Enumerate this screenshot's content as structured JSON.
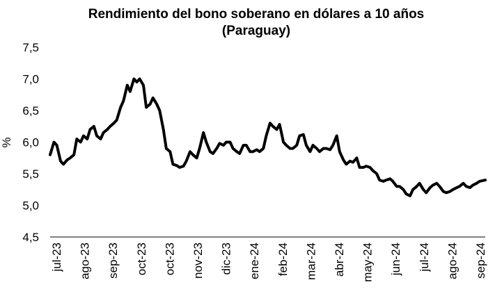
{
  "chart_data": {
    "type": "line",
    "title": "Rendimiento del bono soberano en dólares a 10 años",
    "subtitle": "(Paraguay)",
    "ylabel": "%",
    "xlabel": "",
    "ylim": [
      4.5,
      7.5
    ],
    "yticks": [
      "4,5",
      "5,0",
      "5,5",
      "6,0",
      "6,5",
      "7,0",
      "7,5"
    ],
    "categories": [
      "jul-23",
      "ago-23",
      "sep-23",
      "oct-23",
      "oct-23",
      "nov-23",
      "dic-23",
      "ene-24",
      "feb-24",
      "mar-24",
      "abr-24",
      "may-24",
      "jun-24",
      "jul-24",
      "ago-24",
      "sep-24"
    ],
    "grid": false,
    "legend": "none",
    "line_color": "#000000",
    "series": [
      {
        "x": [
          "2023-07-01",
          "2023-07-05",
          "2023-07-08",
          "2023-07-12",
          "2023-07-15",
          "2023-07-19",
          "2023-07-22",
          "2023-07-26",
          "2023-07-29",
          "2023-08-02",
          "2023-08-05",
          "2023-08-09",
          "2023-08-12",
          "2023-08-16",
          "2023-08-19",
          "2023-08-23",
          "2023-08-26",
          "2023-08-30",
          "2023-09-02",
          "2023-09-06",
          "2023-09-09",
          "2023-09-13",
          "2023-09-16",
          "2023-09-20",
          "2023-09-23",
          "2023-09-27",
          "2023-09-30",
          "2023-10-03",
          "2023-10-07",
          "2023-10-10",
          "2023-10-14",
          "2023-10-17",
          "2023-10-21",
          "2023-10-24",
          "2023-10-28",
          "2023-10-31",
          "2023-11-04",
          "2023-11-07",
          "2023-11-11",
          "2023-11-14",
          "2023-11-18",
          "2023-11-21",
          "2023-11-25",
          "2023-11-28",
          "2023-12-02",
          "2023-12-05",
          "2023-12-09",
          "2023-12-12",
          "2023-12-16",
          "2023-12-19",
          "2023-12-23",
          "2023-12-26",
          "2023-12-30",
          "2024-01-02",
          "2024-01-06",
          "2024-01-09",
          "2024-01-13",
          "2024-01-16",
          "2024-01-20",
          "2024-01-23",
          "2024-01-27",
          "2024-01-30",
          "2024-02-03",
          "2024-02-06",
          "2024-02-10",
          "2024-02-13",
          "2024-02-17",
          "2024-02-20",
          "2024-02-24",
          "2024-02-27",
          "2024-03-02",
          "2024-03-05",
          "2024-03-09",
          "2024-03-12",
          "2024-03-16",
          "2024-03-19",
          "2024-03-23",
          "2024-03-26",
          "2024-03-30",
          "2024-04-02",
          "2024-04-06",
          "2024-04-09",
          "2024-04-13",
          "2024-04-16",
          "2024-04-20",
          "2024-04-23",
          "2024-04-27",
          "2024-04-30",
          "2024-05-04",
          "2024-05-07",
          "2024-05-11",
          "2024-05-14",
          "2024-05-18",
          "2024-05-21",
          "2024-05-25",
          "2024-05-28",
          "2024-06-01",
          "2024-06-04",
          "2024-06-08",
          "2024-06-11",
          "2024-06-15",
          "2024-06-18",
          "2024-06-22",
          "2024-06-25",
          "2024-06-29",
          "2024-07-02",
          "2024-07-06",
          "2024-07-09",
          "2024-07-13",
          "2024-07-16",
          "2024-07-20",
          "2024-07-23",
          "2024-07-27",
          "2024-07-30",
          "2024-08-03",
          "2024-08-06",
          "2024-08-10",
          "2024-08-13",
          "2024-08-17",
          "2024-08-20",
          "2024-08-24",
          "2024-08-27",
          "2024-08-31",
          "2024-09-03",
          "2024-09-07",
          "2024-09-10",
          "2024-09-14",
          "2024-09-17",
          "2024-09-21",
          "2024-09-24",
          "2024-09-30"
        ],
        "values": [
          5.8,
          6.0,
          5.95,
          5.7,
          5.65,
          5.72,
          5.75,
          5.8,
          6.05,
          6.0,
          6.1,
          6.05,
          6.2,
          6.25,
          6.1,
          6.05,
          6.15,
          6.2,
          6.25,
          6.3,
          6.35,
          6.55,
          6.65,
          6.9,
          6.8,
          7.0,
          6.95,
          7.0,
          6.9,
          6.55,
          6.6,
          6.7,
          6.6,
          6.5,
          6.2,
          5.9,
          5.85,
          5.65,
          5.63,
          5.6,
          5.62,
          5.7,
          5.85,
          5.8,
          5.75,
          5.9,
          6.15,
          6.0,
          5.85,
          5.82,
          5.9,
          5.98,
          5.95,
          6.0,
          6.0,
          5.9,
          5.85,
          5.82,
          5.95,
          5.95,
          5.85,
          5.85,
          5.88,
          5.85,
          5.9,
          6.1,
          6.3,
          6.25,
          6.2,
          6.28,
          6.0,
          5.95,
          5.9,
          5.9,
          5.95,
          6.1,
          6.12,
          5.95,
          5.85,
          5.95,
          5.9,
          5.85,
          5.9,
          5.9,
          5.88,
          5.95,
          6.1,
          5.85,
          5.72,
          5.65,
          5.7,
          5.68,
          5.75,
          5.6,
          5.6,
          5.62,
          5.6,
          5.55,
          5.5,
          5.4,
          5.38,
          5.4,
          5.42,
          5.38,
          5.3,
          5.3,
          5.25,
          5.18,
          5.15,
          5.25,
          5.3,
          5.35,
          5.25,
          5.2,
          5.28,
          5.32,
          5.35,
          5.3,
          5.22,
          5.2,
          5.22,
          5.25,
          5.28,
          5.3,
          5.35,
          5.3,
          5.28,
          5.32,
          5.35,
          5.38,
          5.4
        ]
      }
    ]
  }
}
